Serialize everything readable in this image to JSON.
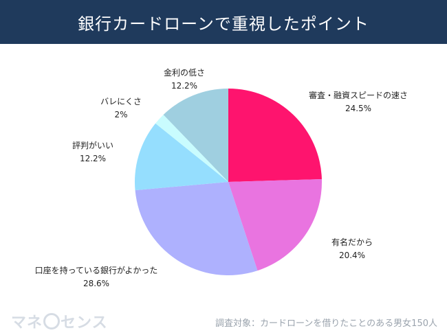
{
  "header": {
    "title": "銀行カードローンで重視したポイント"
  },
  "chart_data": {
    "type": "pie",
    "title": "銀行カードローンで重視したポイント",
    "start_angle_deg": 0,
    "direction": "clockwise",
    "slices": [
      {
        "label": "審査・融資スピードの速さ",
        "value": 24.5,
        "display": "24.5%",
        "color": "#fe146e"
      },
      {
        "label": "有名だから",
        "value": 20.4,
        "display": "20.4%",
        "color": "#e974e0"
      },
      {
        "label": "口座を持っている銀行がよかった",
        "value": 28.6,
        "display": "28.6%",
        "color": "#aeb1fe"
      },
      {
        "label": "評判がいい",
        "value": 12.2,
        "display": "12.2%",
        "color": "#95defe"
      },
      {
        "label": "バレにくさ",
        "value": 2,
        "display": "2%",
        "color": "#c9fcfe"
      },
      {
        "label": "金利の低さ",
        "value": 12.2,
        "display": "12.2%",
        "color": "#9fcfe0"
      }
    ]
  },
  "logo": {
    "text_left": "マネ",
    "text_right": "センス"
  },
  "footnote": "調査対象：カードローンを借りたことのある男女150人"
}
